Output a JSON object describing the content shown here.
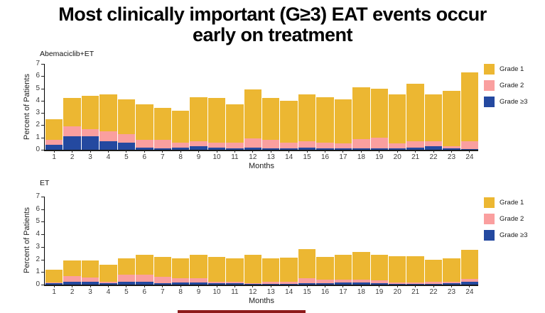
{
  "title": {
    "line1": "Most clinically important (G≥3) EAT events occur",
    "line2": "early on treatment"
  },
  "colors": {
    "grade1": "#ECB732",
    "grade2": "#FA9F9F",
    "grade3": "#2449A0",
    "footer_strip": "#8E1B1B"
  },
  "chart_data": [
    {
      "type": "bar",
      "stacked": true,
      "panel_label": "Abemaciclib+ET",
      "xlabel": "Months",
      "ylabel": "Percent of Patients",
      "ylim": [
        0,
        7
      ],
      "yticks": [
        0,
        1,
        2,
        3,
        4,
        5,
        6,
        7
      ],
      "grid": false,
      "legend_position": "right",
      "categories": [
        1,
        2,
        3,
        4,
        5,
        6,
        7,
        8,
        9,
        10,
        11,
        12,
        13,
        14,
        15,
        16,
        17,
        18,
        19,
        20,
        21,
        22,
        23,
        24
      ],
      "series": [
        {
          "name": "Grade ≥3",
          "color_key": "grade3",
          "values": [
            0.4,
            1.1,
            1.1,
            0.7,
            0.6,
            0.2,
            0.1,
            0.2,
            0.3,
            0.2,
            0.1,
            0.2,
            0.1,
            0.1,
            0.2,
            0.1,
            0.1,
            0.1,
            0.1,
            0.1,
            0.2,
            0.3,
            0.1,
            0.05
          ]
        },
        {
          "name": "Grade 2",
          "color_key": "grade2",
          "values": [
            0.4,
            0.8,
            0.6,
            0.8,
            0.7,
            0.6,
            0.7,
            0.4,
            0.4,
            0.4,
            0.5,
            0.7,
            0.7,
            0.5,
            0.5,
            0.5,
            0.4,
            0.8,
            0.9,
            0.4,
            0.5,
            0.4,
            0.2,
            0.65
          ]
        },
        {
          "name": "Grade 1",
          "color_key": "grade1",
          "values": [
            1.7,
            2.3,
            2.7,
            3.0,
            2.8,
            2.9,
            2.6,
            2.6,
            3.6,
            3.6,
            3.1,
            4.0,
            3.4,
            3.4,
            3.8,
            3.7,
            3.6,
            4.2,
            4.0,
            4.0,
            4.7,
            3.8,
            4.5,
            5.6
          ]
        }
      ],
      "legend": [
        {
          "label": "Grade 1",
          "color_key": "grade1"
        },
        {
          "label": "Grade 2",
          "color_key": "grade2"
        },
        {
          "label": "Grade ≥3",
          "color_key": "grade3"
        }
      ]
    },
    {
      "type": "bar",
      "stacked": true,
      "panel_label": "ET",
      "xlabel": "Months",
      "ylabel": "Percent of Patients",
      "ylim": [
        0,
        7
      ],
      "yticks": [
        0,
        1,
        2,
        3,
        4,
        5,
        6,
        7
      ],
      "grid": false,
      "legend_position": "right",
      "categories": [
        1,
        2,
        3,
        4,
        5,
        6,
        7,
        8,
        9,
        10,
        11,
        12,
        13,
        14,
        15,
        16,
        17,
        18,
        19,
        20,
        21,
        22,
        23,
        24
      ],
      "series": [
        {
          "name": "Grade ≥3",
          "color_key": "grade3",
          "values": [
            0.1,
            0.25,
            0.25,
            0.1,
            0.25,
            0.25,
            0.1,
            0.2,
            0.2,
            0.1,
            0.1,
            0.05,
            0.05,
            0.05,
            0.1,
            0.1,
            0.2,
            0.2,
            0.1,
            0.05,
            0.05,
            0.05,
            0.1,
            0.25
          ]
        },
        {
          "name": "Grade 2",
          "color_key": "grade2",
          "values": [
            0.05,
            0.45,
            0.3,
            0.1,
            0.55,
            0.55,
            0.5,
            0.3,
            0.3,
            0.1,
            0.15,
            0.05,
            0.2,
            0.15,
            0.4,
            0.3,
            0.2,
            0.2,
            0.25,
            0.1,
            0.1,
            0.2,
            0.1,
            0.2
          ]
        },
        {
          "name": "Grade 1",
          "color_key": "grade1",
          "values": [
            1.05,
            1.2,
            1.35,
            1.4,
            1.3,
            1.6,
            1.6,
            1.6,
            1.9,
            2.0,
            1.85,
            2.3,
            1.85,
            1.95,
            2.3,
            1.8,
            2.0,
            2.2,
            2.05,
            2.1,
            2.1,
            1.75,
            1.9,
            2.35
          ]
        }
      ],
      "legend": [
        {
          "label": "Grade 1",
          "color_key": "grade1"
        },
        {
          "label": "Grade 2",
          "color_key": "grade2"
        },
        {
          "label": "Grade ≥3",
          "color_key": "grade3"
        }
      ]
    }
  ]
}
